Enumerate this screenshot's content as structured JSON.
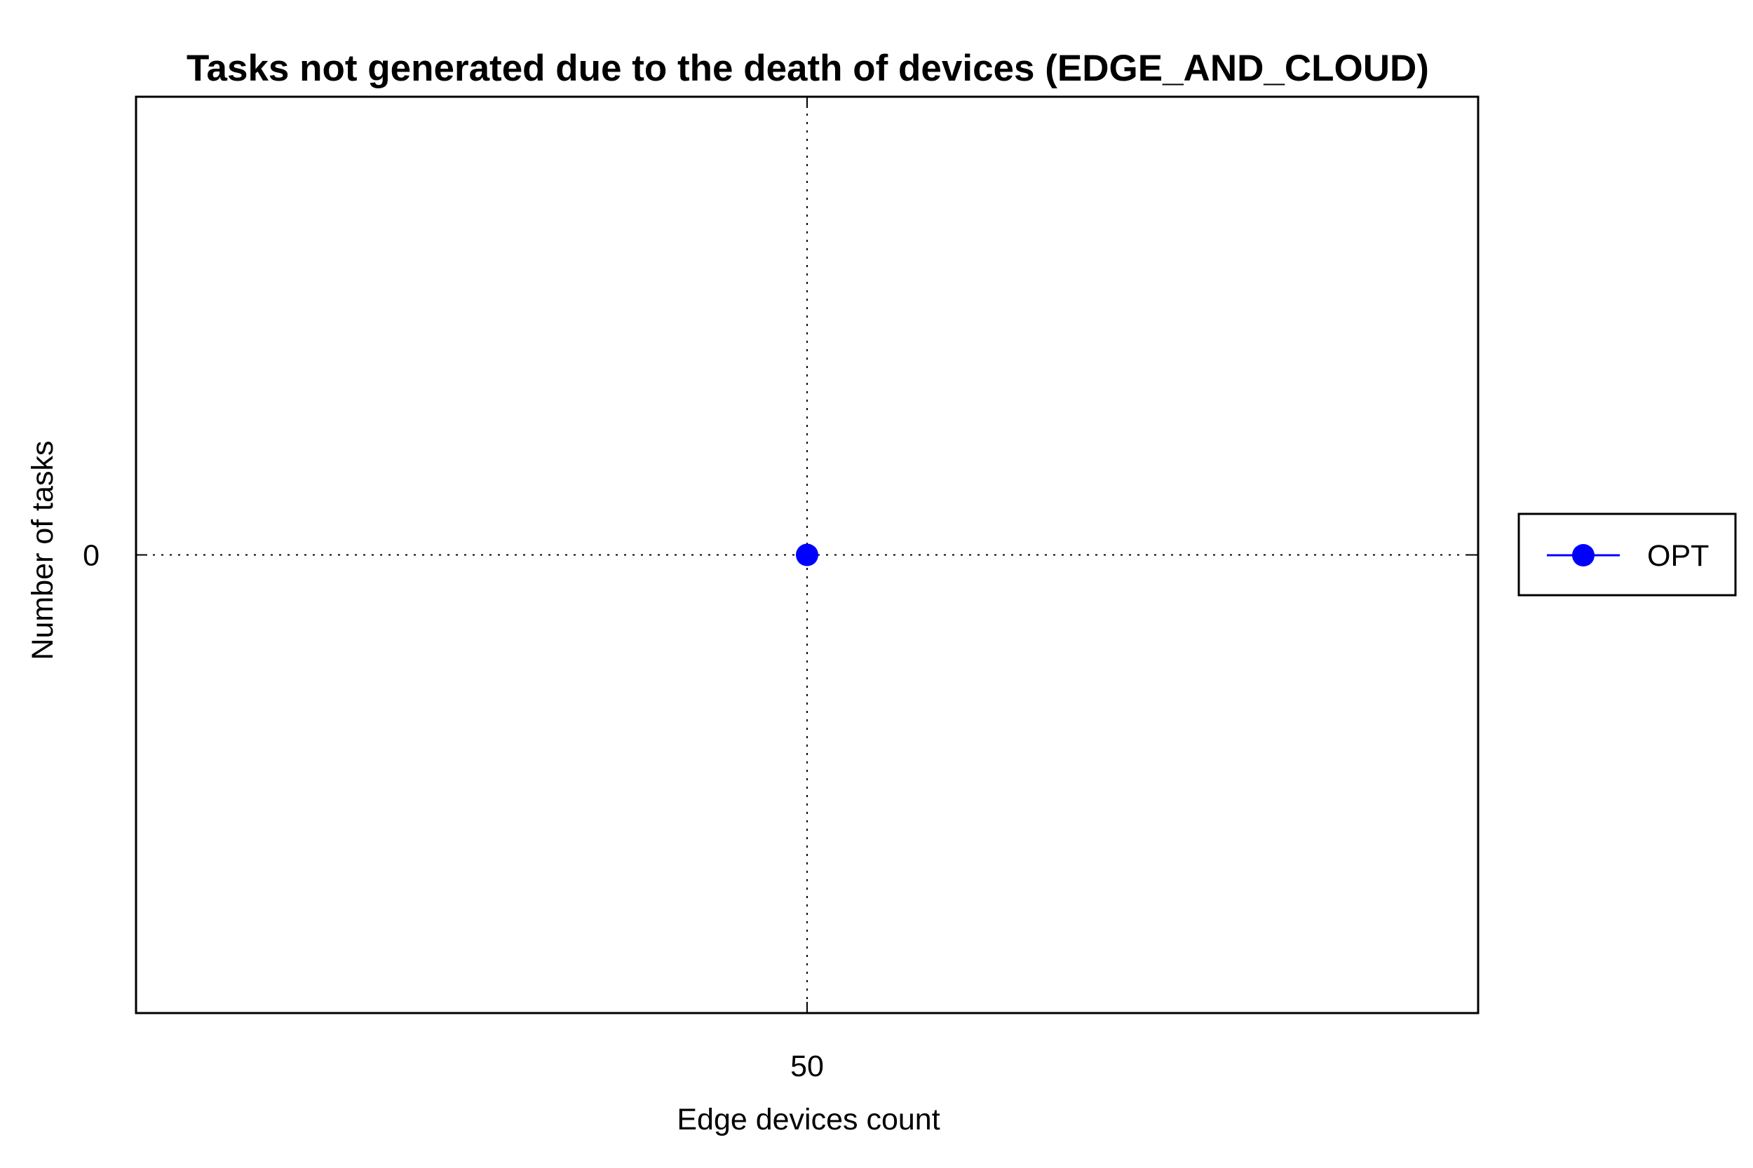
{
  "chart_data": {
    "type": "line",
    "title": "Tasks not generated due to the death of devices (EDGE_AND_CLOUD)",
    "xlabel": "Edge devices count",
    "ylabel": "Number of tasks",
    "x_ticks": [
      "50"
    ],
    "y_ticks": [
      "0"
    ],
    "x": [
      50
    ],
    "xlim": [
      40,
      60
    ],
    "ylim": [
      -1,
      1
    ],
    "grid": true,
    "legend_position": "outside-right",
    "series": [
      {
        "name": "OPT",
        "color": "#0000ff",
        "marker": "circle",
        "values": [
          0
        ]
      }
    ]
  }
}
